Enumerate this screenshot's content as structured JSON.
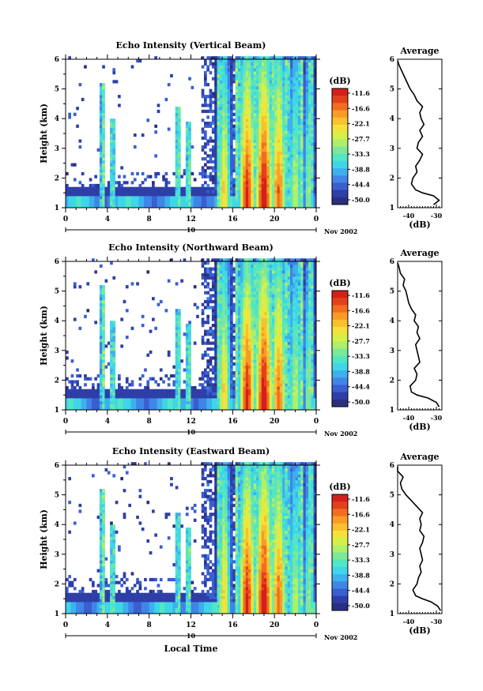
{
  "chart_data": [
    {
      "type": "heatmap",
      "title": "Echo Intensity (Vertical Beam)",
      "xlabel": "",
      "ylabel": "Height (km)",
      "x_ticks": [
        "0",
        "4",
        "8",
        "12",
        "16",
        "20",
        "0"
      ],
      "y_ticks": [
        "1",
        "2",
        "3",
        "4",
        "5",
        "6"
      ],
      "xlim": [
        0,
        24
      ],
      "ylim": [
        1,
        6
      ],
      "date_day": "10",
      "date_label": "Nov 2002",
      "colorbar": {
        "label": "(dB)",
        "ticks": [
          "-11.6",
          "-16.6",
          "-22.1",
          "-27.7",
          "-33.3",
          "-38.8",
          "-44.4",
          "-50.0"
        ]
      },
      "profile": {
        "title": "Average",
        "xlabel": "(dB)",
        "x_ticks": [
          "-40",
          "-30"
        ],
        "xlim": [
          -44,
          -28
        ],
        "ylim": [
          1,
          6
        ],
        "heights": [
          1.1,
          1.25,
          1.4,
          1.5,
          1.6,
          1.8,
          2.0,
          2.2,
          2.4,
          2.6,
          2.8,
          3.0,
          3.2,
          3.4,
          3.6,
          3.8,
          4.0,
          4.2,
          4.4,
          4.6,
          4.8,
          5.0,
          5.2,
          5.4,
          5.6,
          5.8,
          5.95
        ],
        "values": [
          -31,
          -29,
          -31,
          -35,
          -37.5,
          -39,
          -38.5,
          -37,
          -37.5,
          -36,
          -35,
          -37,
          -36.5,
          -35,
          -36,
          -34.5,
          -35.5,
          -36,
          -35,
          -37,
          -38,
          -39.5,
          -40.5,
          -41.5,
          -42.5,
          -43.5,
          -44
        ]
      }
    },
    {
      "type": "heatmap",
      "title": "Echo Intensity (Northward Beam)",
      "xlabel": "",
      "ylabel": "Height (km)",
      "x_ticks": [
        "0",
        "4",
        "8",
        "12",
        "16",
        "20",
        "0"
      ],
      "y_ticks": [
        "1",
        "2",
        "3",
        "4",
        "5",
        "6"
      ],
      "xlim": [
        0,
        24
      ],
      "ylim": [
        1,
        6
      ],
      "date_day": "10",
      "date_label": "Nov 2002",
      "colorbar": {
        "label": "(dB)",
        "ticks": [
          "-11.6",
          "-16.6",
          "-22.1",
          "-27.7",
          "-33.3",
          "-38.8",
          "-44.4",
          "-50.0"
        ]
      },
      "profile": {
        "title": "Average",
        "xlabel": "(dB)",
        "x_ticks": [
          "-40",
          "-30"
        ],
        "xlim": [
          -44,
          -28
        ],
        "ylim": [
          1,
          6
        ],
        "heights": [
          1.1,
          1.25,
          1.4,
          1.5,
          1.6,
          1.8,
          2.0,
          2.2,
          2.4,
          2.6,
          2.8,
          3.0,
          3.2,
          3.4,
          3.6,
          3.8,
          4.0,
          4.2,
          4.4,
          4.6,
          4.8,
          5.0,
          5.2,
          5.4,
          5.6,
          5.8,
          5.95
        ],
        "values": [
          -29,
          -30,
          -33,
          -37,
          -39,
          -39.5,
          -37.5,
          -37,
          -38,
          -36,
          -36.5,
          -37,
          -37.5,
          -36,
          -37,
          -36.5,
          -38,
          -37.5,
          -39,
          -40,
          -40.5,
          -41,
          -42,
          -41.5,
          -43,
          -43.5,
          -44
        ]
      }
    },
    {
      "type": "heatmap",
      "title": "Echo Intensity (Eastward Beam)",
      "xlabel": "Local Time",
      "ylabel": "Height (km)",
      "x_ticks": [
        "0",
        "4",
        "8",
        "12",
        "16",
        "20",
        "0"
      ],
      "y_ticks": [
        "1",
        "2",
        "3",
        "4",
        "5",
        "6"
      ],
      "xlim": [
        0,
        24
      ],
      "ylim": [
        1,
        6
      ],
      "date_day": "10",
      "date_label": "Nov 2002",
      "colorbar": {
        "label": "(dB)",
        "ticks": [
          "-11.6",
          "-16.6",
          "-22.1",
          "-27.7",
          "-33.3",
          "-38.8",
          "-44.4",
          "-50.0"
        ]
      },
      "profile": {
        "title": "Average",
        "xlabel": "(dB)",
        "x_ticks": [
          "-40",
          "-30"
        ],
        "xlim": [
          -44,
          -28
        ],
        "ylim": [
          1,
          6
        ],
        "heights": [
          1.1,
          1.25,
          1.4,
          1.5,
          1.6,
          1.8,
          2.0,
          2.2,
          2.4,
          2.6,
          2.8,
          3.0,
          3.2,
          3.4,
          3.6,
          3.8,
          4.0,
          4.2,
          4.4,
          4.6,
          4.8,
          5.0,
          5.2,
          5.4,
          5.6,
          5.8,
          5.95
        ],
        "values": [
          -28.5,
          -29.5,
          -32,
          -35,
          -37.5,
          -38.5,
          -37,
          -36.5,
          -35.5,
          -36,
          -35,
          -35.5,
          -36,
          -35,
          -34.5,
          -36,
          -35.5,
          -36,
          -35,
          -37,
          -39,
          -41,
          -42.5,
          -43,
          -42,
          -44,
          -44.5
        ]
      }
    }
  ]
}
